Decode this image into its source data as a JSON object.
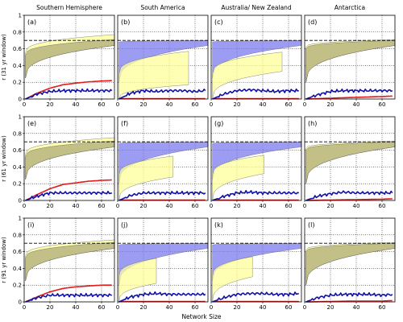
{
  "figure": {
    "xlabel": "Network Size",
    "column_titles": [
      "Southern Hemisphere",
      "South America",
      "Australia/ New Zealand",
      "Antarctica"
    ],
    "row_ylabels": [
      "r (31 yr window)",
      "r (61 yr window)",
      "r (91 yr window)"
    ],
    "x_ticks": [
      "0",
      "20",
      "40",
      "60"
    ],
    "y_ticks": [
      "0",
      "0.2",
      "0.4",
      "0.6",
      "0.8",
      "1"
    ],
    "colors": {
      "blue_band": "#7b7bef",
      "yellow_band": "#ffff99",
      "olive_band": "#b5b37a",
      "red_line": "#e41a1c",
      "navy_line": "#1010a8",
      "reference_line": "#000000"
    }
  },
  "chart_data": {
    "type": "area",
    "layout": "3x4 grid of panels",
    "grid": true,
    "grid_style": "dotted",
    "xlim": [
      0,
      70
    ],
    "ylim": [
      0,
      1
    ],
    "panels": [
      {
        "label": "(a)",
        "row": 0,
        "col": 0,
        "column_title": "Southern Hemisphere",
        "ylabel": "r (31 yr window)",
        "reference_r": 0.7,
        "yellow_band": {
          "x_end": 70,
          "upper_start": 0.55,
          "upper_end": 0.77,
          "lower_start": 0.25,
          "lower_end": 0.64
        },
        "blue_band": {
          "x_end": 70,
          "upper_start": 0.52,
          "upper_end": 0.71,
          "lower_start": 0.25,
          "lower_end": 0.64
        },
        "red_line": {
          "x": [
            1,
            10,
            20,
            30,
            40,
            50,
            60,
            68
          ],
          "y": [
            0.0,
            0.07,
            0.13,
            0.17,
            0.19,
            0.205,
            0.215,
            0.22
          ]
        },
        "navy_line": {
          "x": [
            1,
            10,
            20,
            30,
            40,
            50,
            60,
            68
          ],
          "y": [
            0.0,
            0.06,
            0.09,
            0.1,
            0.1,
            0.1,
            0.1,
            0.1
          ]
        }
      },
      {
        "label": "(b)",
        "row": 0,
        "col": 1,
        "column_title": "South America",
        "reference_r": 0.7,
        "yellow_band": {
          "x_end": 55,
          "upper_start": 0.3,
          "upper_end": 0.57,
          "lower_start": 0.0,
          "lower_end": 0.17
        },
        "blue_band": {
          "x_end": 70,
          "upper_start": 0.68,
          "upper_end": 0.7,
          "lower_start": 0.2,
          "lower_end": 0.64
        },
        "red_line": {
          "x": [
            1,
            68
          ],
          "y": [
            0.005,
            0.005
          ]
        },
        "navy_line": {
          "x": [
            1,
            10,
            20,
            30,
            40,
            50,
            60,
            68
          ],
          "y": [
            0.0,
            0.07,
            0.1,
            0.09,
            0.1,
            0.1,
            0.09,
            0.1
          ]
        }
      },
      {
        "label": "(c)",
        "row": 0,
        "col": 2,
        "column_title": "Australia/ New Zealand",
        "reference_r": 0.7,
        "yellow_band": {
          "x_end": 55,
          "upper_start": 0.3,
          "upper_end": 0.56,
          "lower_start": 0.0,
          "lower_end": 0.33
        },
        "blue_band": {
          "x_end": 70,
          "upper_start": 0.68,
          "upper_end": 0.7,
          "lower_start": 0.25,
          "lower_end": 0.64
        },
        "red_line": {
          "x": [
            1,
            68
          ],
          "y": [
            0.005,
            0.005
          ]
        },
        "navy_line": {
          "x": [
            1,
            10,
            20,
            30,
            40,
            50,
            60,
            68
          ],
          "y": [
            0.0,
            0.06,
            0.1,
            0.11,
            0.1,
            0.09,
            0.1,
            0.1
          ]
        }
      },
      {
        "label": "(d)",
        "row": 0,
        "col": 3,
        "column_title": "Antarctica",
        "reference_r": 0.7,
        "yellow_band": {
          "x_end": 70,
          "upper_start": 0.62,
          "upper_end": 0.71,
          "lower_start": 0.2,
          "lower_end": 0.64
        },
        "blue_band": {
          "x_end": 70,
          "upper_start": 0.6,
          "upper_end": 0.7,
          "lower_start": 0.2,
          "lower_end": 0.64
        },
        "red_line": {
          "x": [
            1,
            20,
            40,
            60,
            68
          ],
          "y": [
            0.0,
            0.01,
            0.02,
            0.03,
            0.035
          ]
        },
        "navy_line": {
          "x": [
            1,
            10,
            20,
            30,
            40,
            50,
            60,
            68
          ],
          "y": [
            0.0,
            0.05,
            0.09,
            0.1,
            0.1,
            0.1,
            0.1,
            0.1
          ]
        }
      },
      {
        "label": "(e)",
        "row": 1,
        "col": 0,
        "ylabel": "r (61 yr window)",
        "reference_r": 0.7,
        "yellow_band": {
          "x_end": 70,
          "upper_start": 0.55,
          "upper_end": 0.75,
          "lower_start": 0.25,
          "lower_end": 0.64
        },
        "blue_band": {
          "x_end": 70,
          "upper_start": 0.52,
          "upper_end": 0.71,
          "lower_start": 0.25,
          "lower_end": 0.64
        },
        "red_line": {
          "x": [
            1,
            10,
            20,
            30,
            40,
            50,
            60,
            68
          ],
          "y": [
            0.0,
            0.07,
            0.14,
            0.19,
            0.21,
            0.23,
            0.24,
            0.245
          ]
        },
        "navy_line": {
          "x": [
            1,
            10,
            20,
            30,
            40,
            50,
            60,
            68
          ],
          "y": [
            0.0,
            0.05,
            0.09,
            0.09,
            0.09,
            0.09,
            0.09,
            0.09
          ]
        }
      },
      {
        "label": "(f)",
        "row": 1,
        "col": 1,
        "reference_r": 0.7,
        "yellow_band": {
          "x_end": 43,
          "upper_start": 0.3,
          "upper_end": 0.53,
          "lower_start": 0.0,
          "lower_end": 0.28
        },
        "blue_band": {
          "x_end": 70,
          "upper_start": 0.68,
          "upper_end": 0.7,
          "lower_start": 0.2,
          "lower_end": 0.64
        },
        "red_line": {
          "x": [
            1,
            68
          ],
          "y": [
            0.005,
            0.005
          ]
        },
        "navy_line": {
          "x": [
            1,
            10,
            20,
            30,
            40,
            50,
            60,
            68
          ],
          "y": [
            0.0,
            0.06,
            0.09,
            0.09,
            0.09,
            0.09,
            0.09,
            0.09
          ]
        }
      },
      {
        "label": "(g)",
        "row": 1,
        "col": 2,
        "reference_r": 0.7,
        "yellow_band": {
          "x_end": 41,
          "upper_start": 0.3,
          "upper_end": 0.54,
          "lower_start": 0.0,
          "lower_end": 0.32
        },
        "blue_band": {
          "x_end": 70,
          "upper_start": 0.68,
          "upper_end": 0.7,
          "lower_start": 0.25,
          "lower_end": 0.64
        },
        "red_line": {
          "x": [
            1,
            68
          ],
          "y": [
            0.005,
            0.005
          ]
        },
        "navy_line": {
          "x": [
            1,
            10,
            20,
            30,
            40,
            50,
            60,
            68
          ],
          "y": [
            0.0,
            0.05,
            0.09,
            0.1,
            0.09,
            0.09,
            0.09,
            0.09
          ]
        }
      },
      {
        "label": "(h)",
        "row": 1,
        "col": 3,
        "reference_r": 0.7,
        "yellow_band": {
          "x_end": 70,
          "upper_start": 0.62,
          "upper_end": 0.71,
          "lower_start": 0.2,
          "lower_end": 0.64
        },
        "blue_band": {
          "x_end": 70,
          "upper_start": 0.6,
          "upper_end": 0.7,
          "lower_start": 0.2,
          "lower_end": 0.64
        },
        "red_line": {
          "x": [
            1,
            20,
            40,
            60,
            68
          ],
          "y": [
            0.0,
            0.005,
            0.01,
            0.015,
            0.02
          ]
        },
        "navy_line": {
          "x": [
            1,
            10,
            20,
            30,
            40,
            50,
            60,
            68
          ],
          "y": [
            0.0,
            0.05,
            0.08,
            0.1,
            0.09,
            0.09,
            0.09,
            0.09
          ]
        }
      },
      {
        "label": "(i)",
        "row": 2,
        "col": 0,
        "ylabel": "r (91 yr window)",
        "reference_r": 0.7,
        "yellow_band": {
          "x_end": 70,
          "upper_start": 0.55,
          "upper_end": 0.74,
          "lower_start": 0.25,
          "lower_end": 0.64
        },
        "blue_band": {
          "x_end": 70,
          "upper_start": 0.52,
          "upper_end": 0.71,
          "lower_start": 0.25,
          "lower_end": 0.64
        },
        "red_line": {
          "x": [
            1,
            10,
            20,
            30,
            40,
            50,
            60,
            68
          ],
          "y": [
            0.0,
            0.06,
            0.12,
            0.16,
            0.18,
            0.19,
            0.2,
            0.2
          ]
        },
        "navy_line": {
          "x": [
            1,
            10,
            20,
            30,
            40,
            50,
            60,
            68
          ],
          "y": [
            0.0,
            0.05,
            0.08,
            0.08,
            0.08,
            0.08,
            0.08,
            0.08
          ]
        }
      },
      {
        "label": "(j)",
        "row": 2,
        "col": 1,
        "reference_r": 0.7,
        "yellow_band": {
          "x_end": 30,
          "upper_start": 0.3,
          "upper_end": 0.52,
          "lower_start": 0.0,
          "lower_end": 0.22
        },
        "blue_band": {
          "x_end": 70,
          "upper_start": 0.68,
          "upper_end": 0.7,
          "lower_start": 0.2,
          "lower_end": 0.64
        },
        "red_line": {
          "x": [
            1,
            68
          ],
          "y": [
            0.005,
            0.005
          ]
        },
        "navy_line": {
          "x": [
            1,
            10,
            20,
            30,
            40,
            50,
            60,
            68
          ],
          "y": [
            0.0,
            0.06,
            0.09,
            0.1,
            0.09,
            0.09,
            0.09,
            0.09
          ]
        }
      },
      {
        "label": "(k)",
        "row": 2,
        "col": 2,
        "reference_r": 0.7,
        "yellow_band": {
          "x_end": 32,
          "upper_start": 0.3,
          "upper_end": 0.54,
          "lower_start": 0.0,
          "lower_end": 0.3
        },
        "blue_band": {
          "x_end": 70,
          "upper_start": 0.68,
          "upper_end": 0.7,
          "lower_start": 0.25,
          "lower_end": 0.64
        },
        "red_line": {
          "x": [
            1,
            68
          ],
          "y": [
            0.005,
            0.005
          ]
        },
        "navy_line": {
          "x": [
            1,
            10,
            20,
            30,
            40,
            50,
            60,
            68
          ],
          "y": [
            0.0,
            0.05,
            0.09,
            0.1,
            0.1,
            0.09,
            0.09,
            0.1
          ]
        }
      },
      {
        "label": "(l)",
        "row": 2,
        "col": 3,
        "reference_r": 0.7,
        "yellow_band": {
          "x_end": 70,
          "upper_start": 0.62,
          "upper_end": 0.71,
          "lower_start": 0.2,
          "lower_end": 0.64
        },
        "blue_band": {
          "x_end": 70,
          "upper_start": 0.6,
          "upper_end": 0.7,
          "lower_start": 0.2,
          "lower_end": 0.64
        },
        "red_line": {
          "x": [
            1,
            20,
            40,
            60,
            68
          ],
          "y": [
            0.0,
            0.005,
            0.01,
            0.01,
            0.015
          ]
        },
        "navy_line": {
          "x": [
            1,
            10,
            20,
            30,
            40,
            50,
            60,
            68
          ],
          "y": [
            0.0,
            0.05,
            0.08,
            0.09,
            0.09,
            0.09,
            0.08,
            0.09
          ]
        }
      }
    ]
  }
}
